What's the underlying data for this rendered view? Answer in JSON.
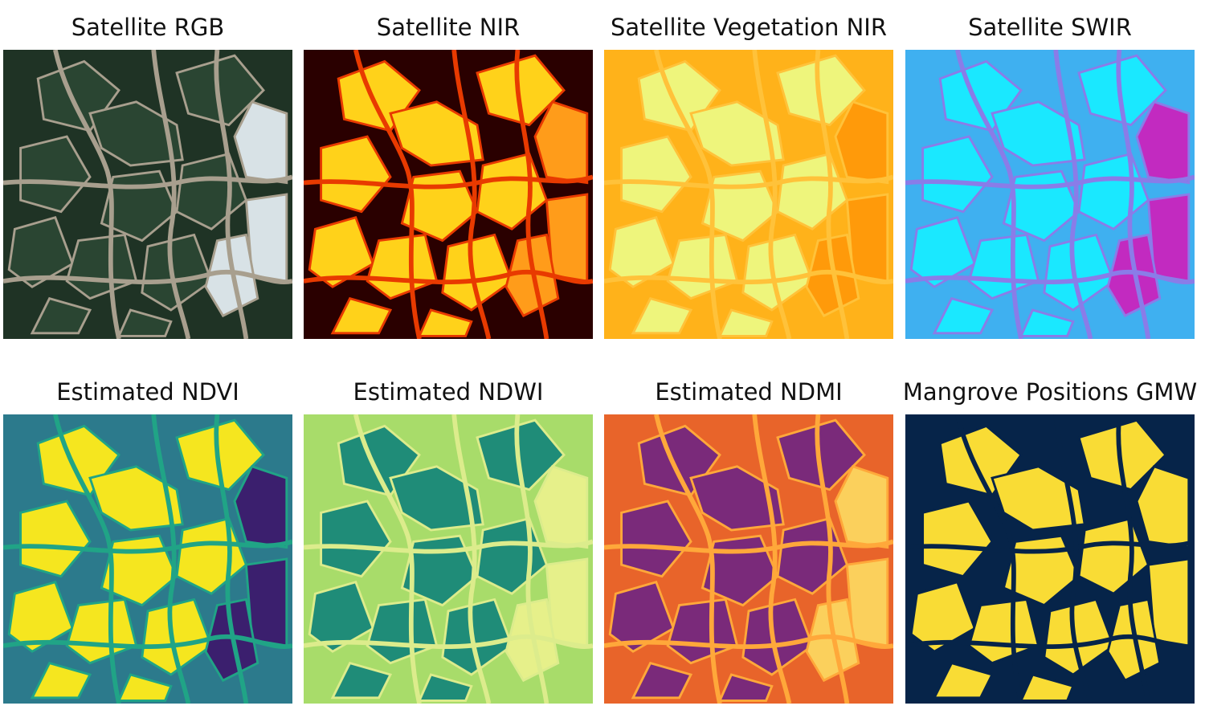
{
  "panels": [
    {
      "title": "Satellite RGB",
      "colors": {
        "bg": "#1f3325",
        "field": "#2a4532",
        "line": "#a89f8e",
        "accent": "#d8e2e6"
      }
    },
    {
      "title": "Satellite NIR",
      "colors": {
        "bg": "#2a0000",
        "field": "#ffd21a",
        "line": "#e83a00",
        "accent": "#ff9c1a"
      }
    },
    {
      "title": "Satellite Vegetation NIR",
      "colors": {
        "bg": "#ffb21a",
        "field": "#eef57c",
        "line": "#ffc23a",
        "accent": "#ff9a0a"
      }
    },
    {
      "title": "Satellite SWIR",
      "colors": {
        "bg": "#3fb0f0",
        "field": "#1ae8ff",
        "line": "#8a7ce8",
        "accent": "#c22ac0"
      }
    },
    {
      "title": "Estimated NDVI",
      "colors": {
        "bg": "#2c7a8c",
        "field": "#f5e61f",
        "line": "#20a486",
        "accent": "#3b1f6e"
      }
    },
    {
      "title": "Estimated NDWI",
      "colors": {
        "bg": "#a8dc6a",
        "field": "#1f8c78",
        "line": "#dcec8c",
        "accent": "#e6f08a"
      }
    },
    {
      "title": "Estimated NDMI",
      "colors": {
        "bg": "#e8642a",
        "field": "#7a2a7a",
        "line": "#ffa83a",
        "accent": "#fbd05c"
      }
    },
    {
      "title": "Mangrove Positions GMW",
      "colors": {
        "bg": "#062449",
        "field": "#f9dc35",
        "line": "#062449",
        "accent": "#f9dc35"
      }
    }
  ]
}
